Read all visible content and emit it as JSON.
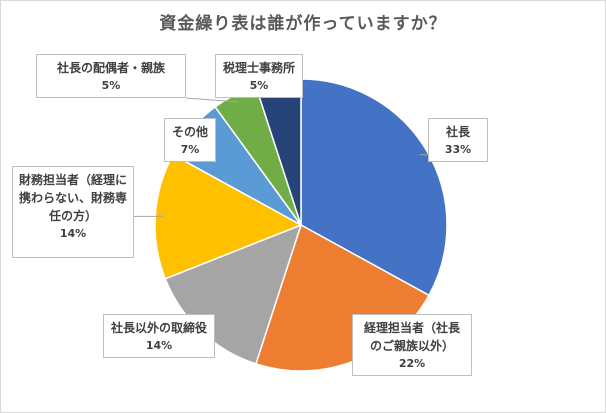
{
  "chart_data": {
    "type": "pie",
    "title": "資金繰り表は誰が作っていますか？",
    "categories": [
      "社長",
      "経理担当者（社長\nのご親族以外）",
      "社長以外の取締役",
      "財務担当者（経理に\n携わらない、財務専\n任の方）",
      "その他",
      "社長の配偶者・親族",
      "税理士事務所"
    ],
    "values": [
      33,
      22,
      14,
      14,
      7,
      5,
      5
    ],
    "value_labels": [
      "33%",
      "22%",
      "14%",
      "14%",
      "7%",
      "5%",
      "5%"
    ],
    "colors": [
      "#4472c4",
      "#ed7d31",
      "#a5a5a5",
      "#ffc000",
      "#5b9bd5",
      "#70ad47",
      "#264478"
    ],
    "start_angle_deg": 0,
    "direction": "clockwise",
    "labels_style": "callout"
  }
}
